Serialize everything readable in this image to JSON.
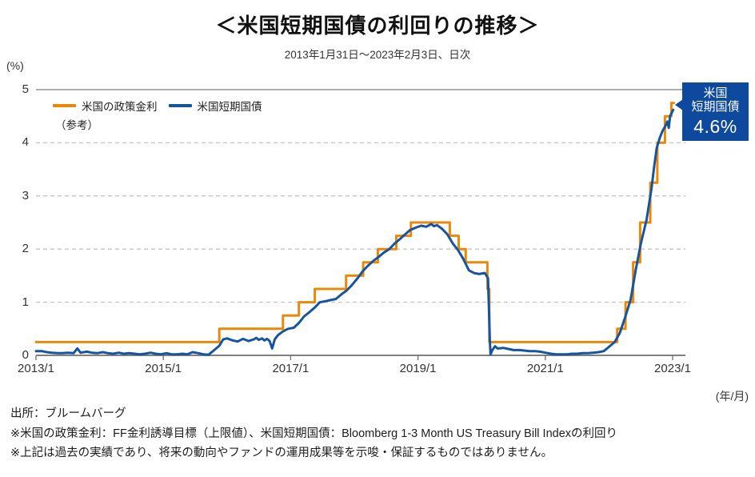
{
  "title": "＜米国短期国債の利回りの推移＞",
  "subtitle": "2013年1月31日～2023年2月3日、日次",
  "y_axis": {
    "unit_label": "(%)",
    "ticks": [
      0,
      1,
      2,
      3,
      4,
      5
    ]
  },
  "x_axis": {
    "unit_label": "(年/月)",
    "ticks": [
      {
        "t": 2013.08,
        "label": "2013/1"
      },
      {
        "t": 2015.08,
        "label": "2015/1"
      },
      {
        "t": 2017.08,
        "label": "2017/1"
      },
      {
        "t": 2019.08,
        "label": "2019/1"
      },
      {
        "t": 2021.08,
        "label": "2021/1"
      },
      {
        "t": 2023.08,
        "label": "2023/1"
      }
    ]
  },
  "colors": {
    "policy_orange": "#E8890C",
    "tbill_blue": "#15559F",
    "callout_bg": "#0D4A9E",
    "grid_dash": "#C3C3C3",
    "grid_top": "#A3A3A3",
    "baseline": "#6E6E6E"
  },
  "legend": [
    {
      "label": "米国の政策金利",
      "label2": "（参考）",
      "color": "#E8890C"
    },
    {
      "label": "米国短期国債",
      "label2": "",
      "color": "#15559F"
    }
  ],
  "callout": {
    "line1": "米国",
    "line2": "短期国債",
    "value": "4.6%"
  },
  "footer": [
    "出所：ブルームバーグ",
    "※米国の政策金利：FF金利誘導目標（上限値）、米国短期国債：Bloomberg 1-3 Month US Treasury Bill Indexの利回り",
    "※上記は過去の実績であり、将来の動向やファンドの運用成果等を示唆・保証するものではありません。"
  ],
  "chart_data": {
    "type": "line",
    "x_range": [
      2013.08,
      2023.1
    ],
    "y_range": [
      0,
      5
    ],
    "grid": "horizontal-dashed",
    "legend_position": "top-left",
    "series": [
      {
        "name": "米国の政策金利（参考）",
        "draw": "step",
        "color": "#E8890C",
        "points": [
          [
            2013.08,
            0.25
          ],
          [
            2015.96,
            0.5
          ],
          [
            2016.96,
            0.75
          ],
          [
            2017.21,
            1.0
          ],
          [
            2017.46,
            1.25
          ],
          [
            2017.95,
            1.5
          ],
          [
            2018.22,
            1.75
          ],
          [
            2018.45,
            2.0
          ],
          [
            2018.74,
            2.25
          ],
          [
            2018.97,
            2.5
          ],
          [
            2019.58,
            2.25
          ],
          [
            2019.72,
            2.0
          ],
          [
            2019.83,
            1.75
          ],
          [
            2020.17,
            1.25
          ],
          [
            2020.2,
            0.25
          ],
          [
            2022.21,
            0.5
          ],
          [
            2022.34,
            1.0
          ],
          [
            2022.46,
            1.75
          ],
          [
            2022.57,
            2.5
          ],
          [
            2022.73,
            3.25
          ],
          [
            2022.84,
            4.0
          ],
          [
            2022.96,
            4.5
          ],
          [
            2023.06,
            4.75
          ]
        ]
      },
      {
        "name": "米国短期国債",
        "draw": "line",
        "color": "#15559F",
        "end_value_label": "4.6%",
        "points": [
          [
            2013.08,
            0.08
          ],
          [
            2013.17,
            0.08
          ],
          [
            2013.25,
            0.06
          ],
          [
            2013.33,
            0.05
          ],
          [
            2013.42,
            0.04
          ],
          [
            2013.5,
            0.04
          ],
          [
            2013.58,
            0.05
          ],
          [
            2013.67,
            0.04
          ],
          [
            2013.73,
            0.13
          ],
          [
            2013.78,
            0.05
          ],
          [
            2013.88,
            0.07
          ],
          [
            2013.96,
            0.05
          ],
          [
            2014.04,
            0.04
          ],
          [
            2014.13,
            0.06
          ],
          [
            2014.21,
            0.04
          ],
          [
            2014.29,
            0.03
          ],
          [
            2014.38,
            0.05
          ],
          [
            2014.46,
            0.03
          ],
          [
            2014.54,
            0.04
          ],
          [
            2014.63,
            0.03
          ],
          [
            2014.71,
            0.02
          ],
          [
            2014.79,
            0.03
          ],
          [
            2014.88,
            0.05
          ],
          [
            2014.96,
            0.03
          ],
          [
            2015.04,
            0.02
          ],
          [
            2015.13,
            0.04
          ],
          [
            2015.21,
            0.02
          ],
          [
            2015.29,
            0.02
          ],
          [
            2015.38,
            0.03
          ],
          [
            2015.46,
            0.02
          ],
          [
            2015.54,
            0.06
          ],
          [
            2015.63,
            0.04
          ],
          [
            2015.71,
            0.02
          ],
          [
            2015.79,
            0.01
          ],
          [
            2015.88,
            0.1
          ],
          [
            2015.96,
            0.18
          ],
          [
            2016.02,
            0.3
          ],
          [
            2016.08,
            0.32
          ],
          [
            2016.17,
            0.28
          ],
          [
            2016.25,
            0.26
          ],
          [
            2016.33,
            0.31
          ],
          [
            2016.42,
            0.27
          ],
          [
            2016.5,
            0.3
          ],
          [
            2016.54,
            0.33
          ],
          [
            2016.58,
            0.29
          ],
          [
            2016.63,
            0.32
          ],
          [
            2016.67,
            0.28
          ],
          [
            2016.71,
            0.31
          ],
          [
            2016.75,
            0.27
          ],
          [
            2016.79,
            0.13
          ],
          [
            2016.83,
            0.3
          ],
          [
            2016.88,
            0.38
          ],
          [
            2016.96,
            0.45
          ],
          [
            2017.04,
            0.5
          ],
          [
            2017.13,
            0.52
          ],
          [
            2017.21,
            0.61
          ],
          [
            2017.29,
            0.73
          ],
          [
            2017.38,
            0.82
          ],
          [
            2017.46,
            0.9
          ],
          [
            2017.54,
            1.0
          ],
          [
            2017.63,
            1.02
          ],
          [
            2017.71,
            1.04
          ],
          [
            2017.79,
            1.06
          ],
          [
            2017.88,
            1.15
          ],
          [
            2017.96,
            1.22
          ],
          [
            2018.04,
            1.32
          ],
          [
            2018.13,
            1.45
          ],
          [
            2018.21,
            1.58
          ],
          [
            2018.29,
            1.68
          ],
          [
            2018.38,
            1.78
          ],
          [
            2018.46,
            1.85
          ],
          [
            2018.54,
            1.93
          ],
          [
            2018.63,
            2.0
          ],
          [
            2018.71,
            2.1
          ],
          [
            2018.79,
            2.18
          ],
          [
            2018.88,
            2.28
          ],
          [
            2018.96,
            2.36
          ],
          [
            2019.04,
            2.4
          ],
          [
            2019.13,
            2.44
          ],
          [
            2019.21,
            2.42
          ],
          [
            2019.29,
            2.47
          ],
          [
            2019.33,
            2.43
          ],
          [
            2019.38,
            2.45
          ],
          [
            2019.46,
            2.38
          ],
          [
            2019.54,
            2.28
          ],
          [
            2019.63,
            2.1
          ],
          [
            2019.71,
            1.98
          ],
          [
            2019.79,
            1.82
          ],
          [
            2019.88,
            1.6
          ],
          [
            2019.96,
            1.55
          ],
          [
            2020.04,
            1.53
          ],
          [
            2020.13,
            1.55
          ],
          [
            2020.18,
            1.45
          ],
          [
            2020.21,
            0.28
          ],
          [
            2020.22,
            0.02
          ],
          [
            2020.25,
            0.1
          ],
          [
            2020.29,
            0.17
          ],
          [
            2020.33,
            0.13
          ],
          [
            2020.42,
            0.14
          ],
          [
            2020.5,
            0.12
          ],
          [
            2020.58,
            0.1
          ],
          [
            2020.67,
            0.1
          ],
          [
            2020.75,
            0.09
          ],
          [
            2020.83,
            0.08
          ],
          [
            2020.92,
            0.08
          ],
          [
            2021.0,
            0.07
          ],
          [
            2021.08,
            0.05
          ],
          [
            2021.17,
            0.03
          ],
          [
            2021.25,
            0.02
          ],
          [
            2021.33,
            0.02
          ],
          [
            2021.42,
            0.02
          ],
          [
            2021.5,
            0.03
          ],
          [
            2021.58,
            0.03
          ],
          [
            2021.67,
            0.04
          ],
          [
            2021.75,
            0.04
          ],
          [
            2021.83,
            0.05
          ],
          [
            2021.92,
            0.06
          ],
          [
            2022.0,
            0.08
          ],
          [
            2022.08,
            0.16
          ],
          [
            2022.17,
            0.25
          ],
          [
            2022.25,
            0.42
          ],
          [
            2022.33,
            0.7
          ],
          [
            2022.42,
            1.05
          ],
          [
            2022.5,
            1.6
          ],
          [
            2022.58,
            2.1
          ],
          [
            2022.67,
            2.55
          ],
          [
            2022.75,
            3.15
          ],
          [
            2022.79,
            3.55
          ],
          [
            2022.83,
            3.9
          ],
          [
            2022.88,
            4.1
          ],
          [
            2022.92,
            4.22
          ],
          [
            2022.96,
            4.3
          ],
          [
            2023.0,
            4.4
          ],
          [
            2023.02,
            4.28
          ],
          [
            2023.04,
            4.5
          ],
          [
            2023.06,
            4.55
          ],
          [
            2023.09,
            4.62
          ]
        ]
      }
    ]
  }
}
